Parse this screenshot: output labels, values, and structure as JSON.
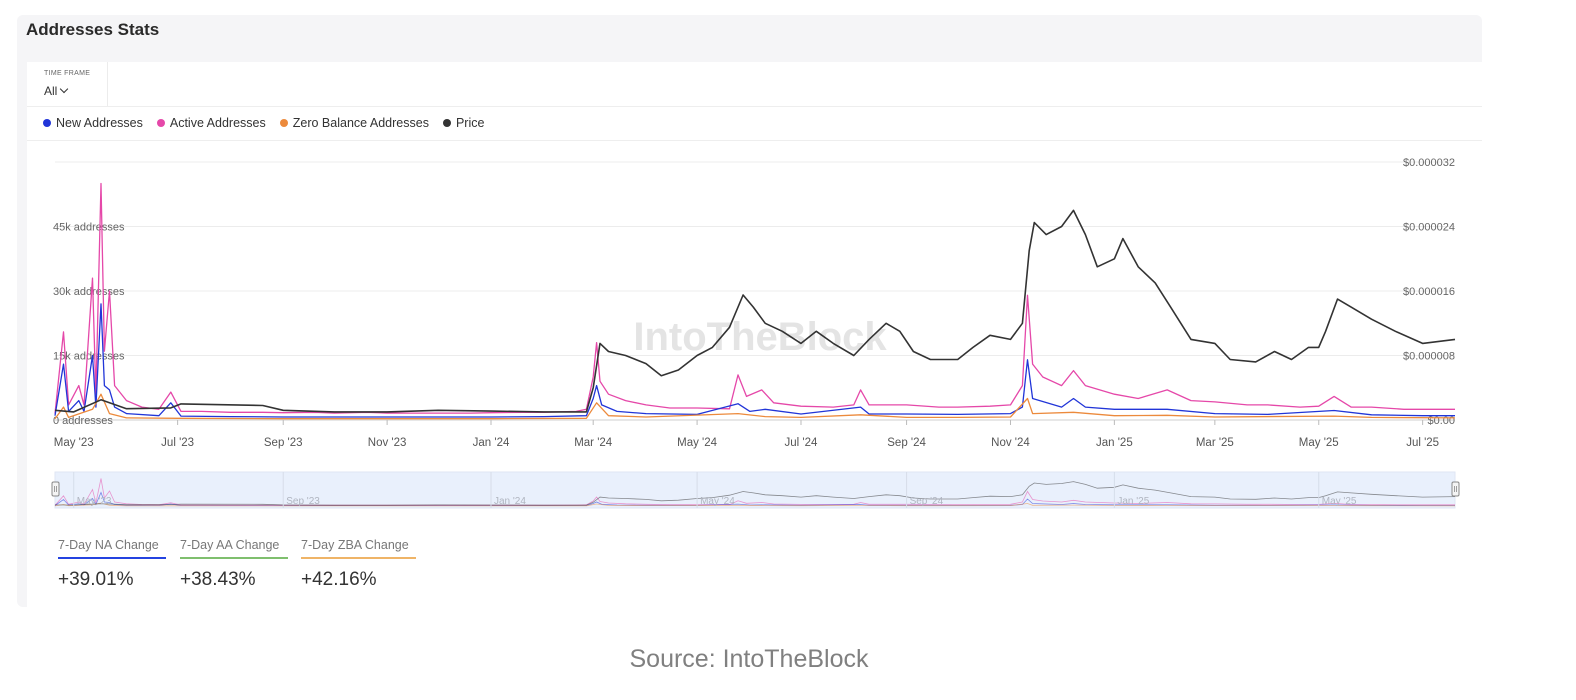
{
  "card": {
    "title": "Addresses Stats"
  },
  "timeframe": {
    "label": "TIME FRAME",
    "value": "All"
  },
  "legend": [
    {
      "label": "New Addresses",
      "color": "#2135d8"
    },
    {
      "label": "Active Addresses",
      "color": "#e548a9"
    },
    {
      "label": "Zero Balance Addresses",
      "color": "#ec8a3c"
    },
    {
      "label": "Price",
      "color": "#333333"
    }
  ],
  "watermark": "IntoTheBlock",
  "stats": [
    {
      "label": "7-Day NA Change",
      "value": "+39.01%",
      "color": "#2443e0"
    },
    {
      "label": "7-Day AA Change",
      "value": "+38.43%",
      "color": "#7fbf6e"
    },
    {
      "label": "7-Day ZBA Change",
      "value": "+42.16%",
      "color": "#efb467"
    }
  ],
  "source": "Source: IntoTheBlock",
  "chart_data": {
    "type": "line",
    "x_range": [
      "2023-04-20",
      "2025-07-20"
    ],
    "y_left_label_suffix": "addresses",
    "y_left_ticks": [
      {
        "label": "45k addresses",
        "value": 45000
      },
      {
        "label": "30k addresses",
        "value": 30000
      },
      {
        "label": "15k addresses",
        "value": 15000
      },
      {
        "label": "0 addresses",
        "value": 0
      }
    ],
    "y_left_range": [
      0,
      60000
    ],
    "y_right_ticks": [
      {
        "label": "$0.000032",
        "value": 3.2e-05
      },
      {
        "label": "$0.000024",
        "value": 2.4e-05
      },
      {
        "label": "$0.000016",
        "value": 1.6e-05
      },
      {
        "label": "$0.000008",
        "value": 8e-06
      },
      {
        "label": "$0.00",
        "value": 0
      }
    ],
    "y_right_range": [
      0,
      3.2e-05
    ],
    "x_ticks": [
      {
        "label": "May '23",
        "date": "2023-05-01"
      },
      {
        "label": "Jul '23",
        "date": "2023-07-01"
      },
      {
        "label": "Sep '23",
        "date": "2023-09-01"
      },
      {
        "label": "Nov '23",
        "date": "2023-11-01"
      },
      {
        "label": "Jan '24",
        "date": "2024-01-01"
      },
      {
        "label": "Mar '24",
        "date": "2024-03-01"
      },
      {
        "label": "May '24",
        "date": "2024-05-01"
      },
      {
        "label": "Jul '24",
        "date": "2024-07-01"
      },
      {
        "label": "Sep '24",
        "date": "2024-09-01"
      },
      {
        "label": "Nov '24",
        "date": "2024-11-01"
      },
      {
        "label": "Jan '25",
        "date": "2025-01-01"
      },
      {
        "label": "Mar '25",
        "date": "2025-03-01"
      },
      {
        "label": "May '25",
        "date": "2025-05-01"
      },
      {
        "label": "Jul '25",
        "date": "2025-07-01"
      }
    ],
    "navigator_ticks": [
      "May '23",
      "Sep '23",
      "Jan '24",
      "May '24",
      "Sep '24",
      "Jan '25",
      "May '25"
    ],
    "series": [
      {
        "name": "Active Addresses",
        "color": "#e548a9",
        "axis": "left",
        "points": [
          [
            "2023-04-20",
            1500
          ],
          [
            "2023-04-25",
            20500
          ],
          [
            "2023-04-28",
            3500
          ],
          [
            "2023-05-04",
            8000
          ],
          [
            "2023-05-07",
            3500
          ],
          [
            "2023-05-12",
            33000
          ],
          [
            "2023-05-14",
            6000
          ],
          [
            "2023-05-17",
            55000
          ],
          [
            "2023-05-19",
            16000
          ],
          [
            "2023-05-22",
            30000
          ],
          [
            "2023-05-25",
            8000
          ],
          [
            "2023-06-01",
            4500
          ],
          [
            "2023-06-10",
            3000
          ],
          [
            "2023-06-20",
            2500
          ],
          [
            "2023-06-27",
            6500
          ],
          [
            "2023-07-03",
            2000
          ],
          [
            "2023-07-15",
            2000
          ],
          [
            "2023-08-01",
            1800
          ],
          [
            "2023-08-20",
            1800
          ],
          [
            "2023-09-01",
            1700
          ],
          [
            "2023-09-20",
            1800
          ],
          [
            "2023-10-01",
            1600
          ],
          [
            "2023-10-20",
            1800
          ],
          [
            "2023-11-01",
            1600
          ],
          [
            "2023-11-20",
            1600
          ],
          [
            "2023-12-01",
            1600
          ],
          [
            "2023-12-20",
            1600
          ],
          [
            "2024-01-01",
            1700
          ],
          [
            "2024-01-20",
            1800
          ],
          [
            "2024-02-01",
            1800
          ],
          [
            "2024-02-20",
            2000
          ],
          [
            "2024-02-26",
            2500
          ],
          [
            "2024-03-01",
            10000
          ],
          [
            "2024-03-03",
            18000
          ],
          [
            "2024-03-05",
            9000
          ],
          [
            "2024-03-10",
            6000
          ],
          [
            "2024-03-20",
            4500
          ],
          [
            "2024-04-01",
            3500
          ],
          [
            "2024-04-15",
            2800
          ],
          [
            "2024-05-01",
            2800
          ],
          [
            "2024-05-20",
            2600
          ],
          [
            "2024-05-25",
            10500
          ],
          [
            "2024-05-30",
            5500
          ],
          [
            "2024-06-08",
            7000
          ],
          [
            "2024-06-15",
            4000
          ],
          [
            "2024-07-01",
            3200
          ],
          [
            "2024-07-20",
            3000
          ],
          [
            "2024-08-01",
            3500
          ],
          [
            "2024-08-05",
            7000
          ],
          [
            "2024-08-10",
            3500
          ],
          [
            "2024-09-01",
            3500
          ],
          [
            "2024-09-20",
            3000
          ],
          [
            "2024-10-01",
            3000
          ],
          [
            "2024-10-20",
            3200
          ],
          [
            "2024-11-01",
            3500
          ],
          [
            "2024-11-08",
            8000
          ],
          [
            "2024-11-11",
            29000
          ],
          [
            "2024-11-14",
            13000
          ],
          [
            "2024-11-20",
            10000
          ],
          [
            "2024-12-01",
            8000
          ],
          [
            "2024-12-08",
            11500
          ],
          [
            "2024-12-15",
            8000
          ],
          [
            "2025-01-01",
            6000
          ],
          [
            "2025-01-15",
            5000
          ],
          [
            "2025-02-01",
            7000
          ],
          [
            "2025-02-15",
            4500
          ],
          [
            "2025-03-01",
            4200
          ],
          [
            "2025-03-20",
            3500
          ],
          [
            "2025-04-01",
            3500
          ],
          [
            "2025-04-20",
            3000
          ],
          [
            "2025-05-01",
            3200
          ],
          [
            "2025-05-10",
            5500
          ],
          [
            "2025-05-20",
            3000
          ],
          [
            "2025-06-01",
            3000
          ],
          [
            "2025-06-20",
            2500
          ],
          [
            "2025-07-01",
            2500
          ],
          [
            "2025-07-20",
            2500
          ]
        ]
      },
      {
        "name": "New Addresses",
        "color": "#2135d8",
        "axis": "left",
        "points": [
          [
            "2023-04-20",
            1000
          ],
          [
            "2023-04-25",
            13000
          ],
          [
            "2023-04-28",
            2000
          ],
          [
            "2023-05-04",
            4500
          ],
          [
            "2023-05-07",
            2000
          ],
          [
            "2023-05-12",
            15000
          ],
          [
            "2023-05-14",
            3000
          ],
          [
            "2023-05-17",
            27000
          ],
          [
            "2023-05-19",
            8000
          ],
          [
            "2023-05-22",
            7000
          ],
          [
            "2023-05-25",
            3000
          ],
          [
            "2023-06-01",
            1500
          ],
          [
            "2023-06-20",
            1000
          ],
          [
            "2023-06-27",
            4000
          ],
          [
            "2023-07-03",
            900
          ],
          [
            "2023-08-01",
            800
          ],
          [
            "2023-09-01",
            700
          ],
          [
            "2023-10-01",
            700
          ],
          [
            "2023-11-01",
            700
          ],
          [
            "2023-12-01",
            700
          ],
          [
            "2024-01-01",
            700
          ],
          [
            "2024-02-01",
            800
          ],
          [
            "2024-02-26",
            1000
          ],
          [
            "2024-03-01",
            5000
          ],
          [
            "2024-03-03",
            8000
          ],
          [
            "2024-03-06",
            3500
          ],
          [
            "2024-03-15",
            2000
          ],
          [
            "2024-04-01",
            1500
          ],
          [
            "2024-05-01",
            1300
          ],
          [
            "2024-05-25",
            3800
          ],
          [
            "2024-06-01",
            2000
          ],
          [
            "2024-06-10",
            2500
          ],
          [
            "2024-07-01",
            1400
          ],
          [
            "2024-08-05",
            3000
          ],
          [
            "2024-08-10",
            1400
          ],
          [
            "2024-09-01",
            1400
          ],
          [
            "2024-10-01",
            1300
          ],
          [
            "2024-11-01",
            1500
          ],
          [
            "2024-11-08",
            3000
          ],
          [
            "2024-11-11",
            14000
          ],
          [
            "2024-11-14",
            5000
          ],
          [
            "2024-12-01",
            3000
          ],
          [
            "2024-12-08",
            5000
          ],
          [
            "2024-12-15",
            3000
          ],
          [
            "2025-01-01",
            2500
          ],
          [
            "2025-02-01",
            2500
          ],
          [
            "2025-03-01",
            1500
          ],
          [
            "2025-04-01",
            1300
          ],
          [
            "2025-05-10",
            2200
          ],
          [
            "2025-06-01",
            1200
          ],
          [
            "2025-07-01",
            1000
          ],
          [
            "2025-07-20",
            1000
          ]
        ]
      },
      {
        "name": "Zero Balance Addresses",
        "color": "#ec8a3c",
        "axis": "left",
        "points": [
          [
            "2023-04-20",
            300
          ],
          [
            "2023-04-25",
            3000
          ],
          [
            "2023-04-28",
            600
          ],
          [
            "2023-05-12",
            2500
          ],
          [
            "2023-05-17",
            6000
          ],
          [
            "2023-05-22",
            1500
          ],
          [
            "2023-06-01",
            500
          ],
          [
            "2023-07-01",
            400
          ],
          [
            "2023-09-01",
            300
          ],
          [
            "2023-11-01",
            300
          ],
          [
            "2024-01-01",
            300
          ],
          [
            "2024-02-26",
            400
          ],
          [
            "2024-03-03",
            4000
          ],
          [
            "2024-03-10",
            1000
          ],
          [
            "2024-04-01",
            700
          ],
          [
            "2024-05-25",
            1500
          ],
          [
            "2024-06-10",
            800
          ],
          [
            "2024-07-01",
            600
          ],
          [
            "2024-08-05",
            1200
          ],
          [
            "2024-09-01",
            600
          ],
          [
            "2024-10-01",
            600
          ],
          [
            "2024-11-01",
            700
          ],
          [
            "2024-11-11",
            5000
          ],
          [
            "2024-11-14",
            1500
          ],
          [
            "2024-12-08",
            1800
          ],
          [
            "2025-01-01",
            1000
          ],
          [
            "2025-02-01",
            1100
          ],
          [
            "2025-03-01",
            700
          ],
          [
            "2025-05-10",
            900
          ],
          [
            "2025-06-01",
            600
          ],
          [
            "2025-07-20",
            500
          ]
        ]
      },
      {
        "name": "Price",
        "color": "#333333",
        "axis": "right",
        "points": [
          [
            "2023-04-20",
            1.2e-06
          ],
          [
            "2023-05-01",
            1e-06
          ],
          [
            "2023-05-17",
            2.5e-06
          ],
          [
            "2023-06-01",
            1.4e-06
          ],
          [
            "2023-06-27",
            1.5e-06
          ],
          [
            "2023-07-03",
            2e-06
          ],
          [
            "2023-08-20",
            1.8e-06
          ],
          [
            "2023-09-01",
            1.2e-06
          ],
          [
            "2023-10-01",
            1e-06
          ],
          [
            "2023-11-01",
            1e-06
          ],
          [
            "2023-12-01",
            1.2e-06
          ],
          [
            "2024-01-01",
            1.1e-06
          ],
          [
            "2024-02-01",
            1e-06
          ],
          [
            "2024-02-26",
            1e-06
          ],
          [
            "2024-03-01",
            4e-06
          ],
          [
            "2024-03-05",
            9.5e-06
          ],
          [
            "2024-03-10",
            8.5e-06
          ],
          [
            "2024-03-20",
            8e-06
          ],
          [
            "2024-04-01",
            7e-06
          ],
          [
            "2024-04-10",
            5.5e-06
          ],
          [
            "2024-04-20",
            6.2e-06
          ],
          [
            "2024-05-01",
            8e-06
          ],
          [
            "2024-05-10",
            9e-06
          ],
          [
            "2024-05-20",
            1.15e-05
          ],
          [
            "2024-05-28",
            1.55e-05
          ],
          [
            "2024-06-03",
            1.4e-05
          ],
          [
            "2024-06-10",
            1.2e-05
          ],
          [
            "2024-06-20",
            1.1e-05
          ],
          [
            "2024-07-01",
            9.5e-06
          ],
          [
            "2024-07-10",
            1.1e-05
          ],
          [
            "2024-07-20",
            9.5e-06
          ],
          [
            "2024-08-01",
            8e-06
          ],
          [
            "2024-08-10",
            1e-05
          ],
          [
            "2024-08-20",
            1.2e-05
          ],
          [
            "2024-08-28",
            1.1e-05
          ],
          [
            "2024-09-05",
            8.5e-06
          ],
          [
            "2024-09-15",
            7.5e-06
          ],
          [
            "2024-10-01",
            7.5e-06
          ],
          [
            "2024-10-10",
            9e-06
          ],
          [
            "2024-10-20",
            1.05e-05
          ],
          [
            "2024-11-01",
            1e-05
          ],
          [
            "2024-11-08",
            1.2e-05
          ],
          [
            "2024-11-12",
            2.1e-05
          ],
          [
            "2024-11-15",
            2.45e-05
          ],
          [
            "2024-11-22",
            2.3e-05
          ],
          [
            "2024-12-01",
            2.4e-05
          ],
          [
            "2024-12-08",
            2.6e-05
          ],
          [
            "2024-12-15",
            2.3e-05
          ],
          [
            "2024-12-22",
            1.9e-05
          ],
          [
            "2025-01-01",
            2e-05
          ],
          [
            "2025-01-06",
            2.25e-05
          ],
          [
            "2025-01-15",
            1.9e-05
          ],
          [
            "2025-01-25",
            1.7e-05
          ],
          [
            "2025-02-03",
            1.4e-05
          ],
          [
            "2025-02-15",
            1e-05
          ],
          [
            "2025-03-01",
            9.5e-06
          ],
          [
            "2025-03-10",
            7.5e-06
          ],
          [
            "2025-03-25",
            7.2e-06
          ],
          [
            "2025-04-05",
            8.5e-06
          ],
          [
            "2025-04-15",
            7.5e-06
          ],
          [
            "2025-04-25",
            9e-06
          ],
          [
            "2025-05-01",
            9e-06
          ],
          [
            "2025-05-05",
            1.1e-05
          ],
          [
            "2025-05-12",
            1.5e-05
          ],
          [
            "2025-05-20",
            1.4e-05
          ],
          [
            "2025-06-01",
            1.25e-05
          ],
          [
            "2025-06-15",
            1.1e-05
          ],
          [
            "2025-07-01",
            9.5e-06
          ],
          [
            "2025-07-20",
            1e-05
          ]
        ]
      }
    ]
  }
}
